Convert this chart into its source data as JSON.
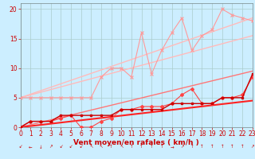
{
  "xlabel": "Vent moyen/en rafales ( km/h )",
  "bg_color": "#cceeff",
  "grid_color": "#aacccc",
  "x_ticks": [
    0,
    1,
    2,
    3,
    4,
    5,
    6,
    7,
    8,
    9,
    10,
    11,
    12,
    13,
    14,
    15,
    16,
    17,
    18,
    19,
    20,
    21,
    22,
    23
  ],
  "ylim": [
    0,
    21
  ],
  "xlim": [
    0,
    23
  ],
  "y_ticks": [
    0,
    5,
    10,
    15,
    20
  ],
  "line_pink_x": [
    0,
    1,
    2,
    3,
    4,
    5,
    6,
    7,
    8,
    9,
    10,
    11,
    12,
    13,
    14,
    15,
    16,
    17,
    18,
    19,
    20,
    21,
    22,
    23
  ],
  "line_pink_y": [
    5,
    5,
    5,
    5,
    5,
    5,
    5,
    5,
    8.5,
    10,
    10,
    8.5,
    16,
    9,
    13,
    16,
    18.5,
    13,
    15.5,
    16.5,
    20,
    19,
    18.5,
    18
  ],
  "line_pink_color": "#ff9999",
  "line_red2_x": [
    0,
    1,
    2,
    3,
    4,
    5,
    6,
    7,
    8,
    9,
    10,
    11,
    12,
    13,
    14,
    15,
    16,
    17,
    18,
    19,
    20,
    21,
    22,
    23
  ],
  "line_red2_y": [
    0,
    1,
    1,
    1,
    1.5,
    2,
    0,
    0,
    1,
    1.5,
    3,
    3,
    3.5,
    3.5,
    3.5,
    4,
    5.5,
    6.5,
    4,
    4,
    5,
    5,
    5.5,
    8.5
  ],
  "line_red2_color": "#ff4444",
  "trend1_x": [
    0,
    23
  ],
  "trend1_y": [
    5,
    18.5
  ],
  "trend1_color": "#ffbbbb",
  "trend2_x": [
    0,
    23
  ],
  "trend2_y": [
    5,
    15.5
  ],
  "trend2_color": "#ffbbbb",
  "trend3_x": [
    0,
    23
  ],
  "trend3_y": [
    0,
    9.5
  ],
  "trend3_color": "#ff7777",
  "trend4_x": [
    0,
    23
  ],
  "trend4_y": [
    0,
    4.5
  ],
  "trend4_color": "#ff2222",
  "line_darkred_x": [
    0,
    1,
    2,
    3,
    4,
    5,
    6,
    7,
    8,
    9,
    10,
    11,
    12,
    13,
    14,
    15,
    16,
    17,
    18,
    19,
    20,
    21,
    22,
    23
  ],
  "line_darkred_y": [
    0,
    1,
    1,
    1,
    2,
    2,
    2,
    2,
    2,
    2,
    3,
    3,
    3,
    3,
    3,
    4,
    4,
    4,
    4,
    4,
    5,
    5,
    5,
    9
  ],
  "line_darkred_color": "#cc0000",
  "arrow_color": "#cc0000",
  "xlabel_color": "#cc0000",
  "xlabel_fontsize": 6.5,
  "tick_color": "#cc0000",
  "tick_fontsize": 5.5
}
